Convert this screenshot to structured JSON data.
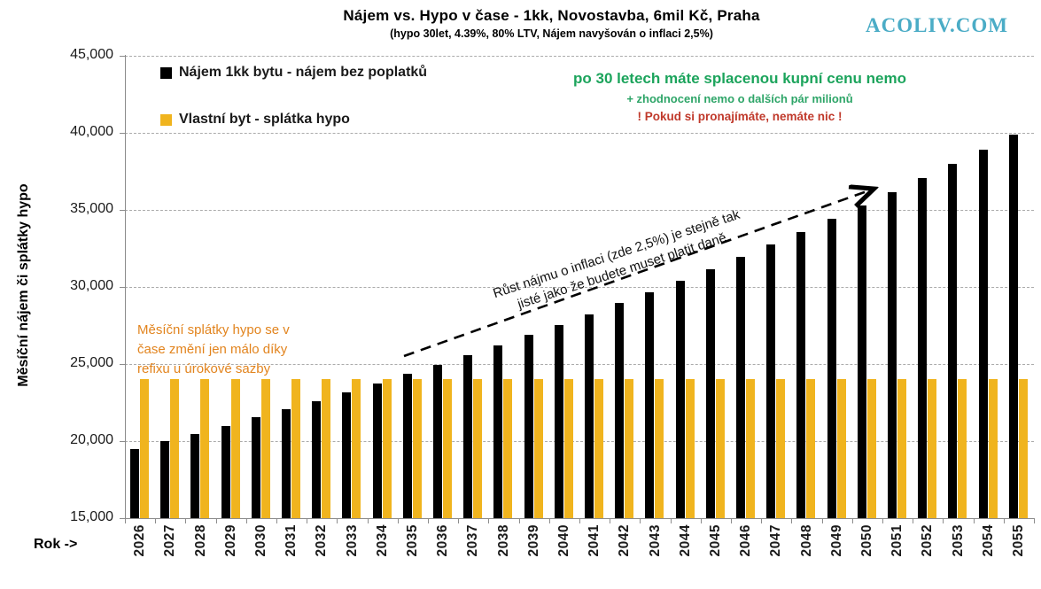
{
  "header": {
    "title": "Nájem vs. Hypo v čase - 1kk, Novostavba, 6mil Kč, Praha",
    "subtitle": "(hypo 30let, 4.39%, 80% LTV,  Nájem navyšován o inflaci 2,5%)",
    "watermark": "ACOLIV.COM"
  },
  "chart_data": {
    "type": "bar",
    "title": "Nájem vs. Hypo v čase - 1kk, Novostavba, 6mil Kč, Praha",
    "subtitle": "(hypo 30let, 4.39%, 80% LTV,  Nájem navyšován o inflaci 2,5%)",
    "categories": [
      "2026",
      "2027",
      "2028",
      "2029",
      "2030",
      "2031",
      "2032",
      "2033",
      "2034",
      "2035",
      "2036",
      "2037",
      "2038",
      "2039",
      "2040",
      "2041",
      "2042",
      "2043",
      "2044",
      "2045",
      "2046",
      "2047",
      "2048",
      "2049",
      "2050",
      "2051",
      "2052",
      "2053",
      "2054",
      "2055"
    ],
    "series": [
      {
        "name": "Nájem 1kk bytu - nájem bez poplatků",
        "color": "#000000",
        "values": [
          19500,
          19988,
          20487,
          20999,
          21524,
          22062,
          22614,
          23179,
          23759,
          24353,
          24962,
          25586,
          26225,
          26881,
          27553,
          28242,
          28948,
          29672,
          30413,
          31174,
          31953,
          32752,
          33571,
          34410,
          35270,
          36152,
          37056,
          37982,
          38932,
          39905
        ]
      },
      {
        "name": "Vlastní byt - splátka hypo",
        "color": "#F0B41E",
        "values": [
          24000,
          24000,
          24000,
          24000,
          24000,
          24000,
          24000,
          24000,
          24000,
          24000,
          24000,
          24000,
          24000,
          24000,
          24000,
          24000,
          24000,
          24000,
          24000,
          24000,
          24000,
          24000,
          24000,
          24000,
          24000,
          24000,
          24000,
          24000,
          24000,
          24000
        ]
      }
    ],
    "xlabel": "Rok ->",
    "ylabel": "Měsíční nájem či splátky hypo",
    "ylim": [
      15000,
      45000
    ],
    "ytick_step": 5000,
    "grid": "horizontal-dashed",
    "legend_position": "top-left-inside"
  },
  "annotations": {
    "green_headline": "po 30 letech máte splacenou kupní cenu nemo",
    "green_subline": "+ zhodnocení nemo o dalších pár milionů",
    "red_line": "! Pokud si pronajímáte, nemáte nic !",
    "orange_note_lines": [
      "Měsíční splátky hypo se v",
      "čase změní jen málo díky",
      "refixu u úrokové sazby"
    ],
    "diagonal_note_lines": [
      "Růst nájmu o inflaci (zde 2,5%) je stejně tak",
      "jisté jako že budete muset platit daně"
    ]
  },
  "colors": {
    "bar_rent": "#000000",
    "bar_mortgage": "#F0B41E",
    "green_text": "#1CA45C",
    "red_text": "#C0392B",
    "orange_text": "#E2841E",
    "watermark_teal": "#4BACC6",
    "gridline": "#ABABAB",
    "axis": "#8C8C8C"
  }
}
